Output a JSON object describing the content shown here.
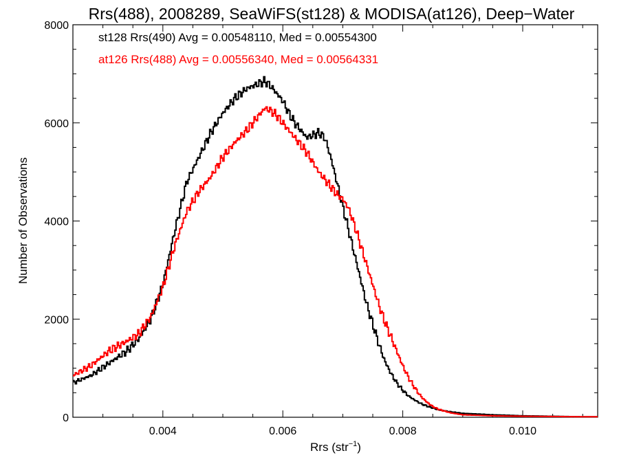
{
  "chart_data": {
    "type": "line",
    "title": "Rrs(488), 2008289, SeaWiFS(st128) & MODISA(at126), Deep−Water",
    "xlabel_main": "Rrs (str",
    "xlabel_sup": "−1",
    "xlabel_close": ")",
    "ylabel": "Number of Observations",
    "xlim": [
      0.0025,
      0.01125
    ],
    "ylim": [
      0,
      8000
    ],
    "x_ticks": [
      0.004,
      0.006,
      0.008,
      0.01
    ],
    "x_tick_labels": [
      "0.004",
      "0.006",
      "0.008",
      "0.010"
    ],
    "y_ticks": [
      0,
      2000,
      4000,
      6000,
      8000
    ],
    "y_tick_labels": [
      "0",
      "2000",
      "4000",
      "6000",
      "8000"
    ],
    "grid": false,
    "legend_position": "top-left",
    "series": [
      {
        "label": "st128 Rrs(490) Avg = 0.00548110, Med = 0.00554300",
        "color": "#000000",
        "x": [
          0.0025,
          0.0028,
          0.0031,
          0.0034,
          0.0036,
          0.0038,
          0.004,
          0.0042,
          0.0044,
          0.0046,
          0.0048,
          0.005,
          0.0052,
          0.0054,
          0.0055,
          0.0056,
          0.0057,
          0.0058,
          0.0059,
          0.006,
          0.0061,
          0.0062,
          0.0063,
          0.0064,
          0.0065,
          0.0066,
          0.0067,
          0.0068,
          0.0069,
          0.007,
          0.0071,
          0.0072,
          0.0073,
          0.0074,
          0.0075,
          0.0076,
          0.0077,
          0.0078,
          0.0079,
          0.008,
          0.0081,
          0.0082,
          0.0083,
          0.0084,
          0.0085,
          0.0086,
          0.0088,
          0.009,
          0.0095,
          0.01,
          0.0105,
          0.011,
          0.01125
        ],
        "y": [
          700,
          850,
          1100,
          1350,
          1600,
          2000,
          2700,
          3800,
          4800,
          5300,
          5800,
          6200,
          6500,
          6700,
          6750,
          6800,
          6850,
          6750,
          6600,
          6450,
          6200,
          6000,
          5850,
          5700,
          5750,
          5800,
          5700,
          5300,
          4800,
          4300,
          3800,
          3300,
          2800,
          2300,
          1900,
          1500,
          1150,
          900,
          700,
          550,
          430,
          350,
          280,
          230,
          190,
          150,
          110,
          80,
          50,
          30,
          20,
          10,
          10
        ]
      },
      {
        "label": "at126 Rrs(488) Avg = 0.00556340, Med = 0.00564331",
        "color": "#ff0000",
        "x": [
          0.0025,
          0.0028,
          0.0031,
          0.0034,
          0.0036,
          0.0038,
          0.004,
          0.0042,
          0.0044,
          0.0046,
          0.0048,
          0.005,
          0.0052,
          0.0054,
          0.0055,
          0.0056,
          0.0057,
          0.0058,
          0.0059,
          0.006,
          0.0061,
          0.0062,
          0.0063,
          0.0064,
          0.0065,
          0.0066,
          0.0067,
          0.0068,
          0.0069,
          0.007,
          0.0071,
          0.0072,
          0.0073,
          0.0074,
          0.0075,
          0.0076,
          0.0077,
          0.0078,
          0.0079,
          0.008,
          0.0081,
          0.0082,
          0.0083,
          0.0084,
          0.0085,
          0.0086,
          0.0088,
          0.009,
          0.0095,
          0.01,
          0.0105,
          0.011,
          0.01125
        ],
        "y": [
          850,
          1050,
          1350,
          1550,
          1700,
          2050,
          2650,
          3500,
          4200,
          4600,
          4900,
          5300,
          5600,
          5850,
          6000,
          6150,
          6300,
          6250,
          6150,
          6000,
          5850,
          5700,
          5550,
          5400,
          5200,
          5000,
          4850,
          4700,
          4550,
          4450,
          4250,
          3900,
          3500,
          3100,
          2700,
          2300,
          1950,
          1650,
          1350,
          1050,
          800,
          600,
          430,
          310,
          220,
          160,
          90,
          50,
          30,
          20,
          15,
          10,
          10
        ]
      }
    ]
  }
}
